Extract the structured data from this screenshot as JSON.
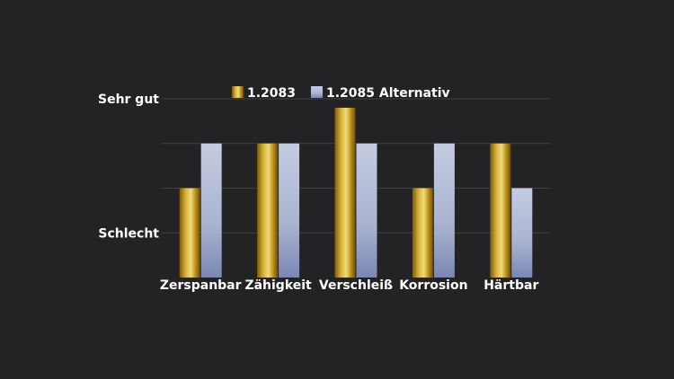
{
  "chart_data": {
    "type": "bar",
    "title": "",
    "xlabel": "",
    "ylabel": "",
    "categories": [
      "Zerspanbar",
      "Zähigkeit",
      "Verschleiß",
      "Korrosion",
      "Härtbar"
    ],
    "series": [
      {
        "name": "1.2083",
        "values": [
          2,
          3,
          3.8,
          2,
          3
        ],
        "color": "#c9a227"
      },
      {
        "name": "1.2085 Alternativ",
        "values": [
          3,
          3,
          3,
          3,
          2
        ],
        "color": "#a9b4d3"
      }
    ],
    "ylim": [
      0,
      4
    ],
    "yticks": [
      {
        "value": 1,
        "label": "Schlecht"
      },
      {
        "value": 4,
        "label": "Sehr gut"
      }
    ],
    "gridlines": [
      1,
      2,
      3,
      4
    ],
    "grid": true,
    "legend": "top"
  }
}
